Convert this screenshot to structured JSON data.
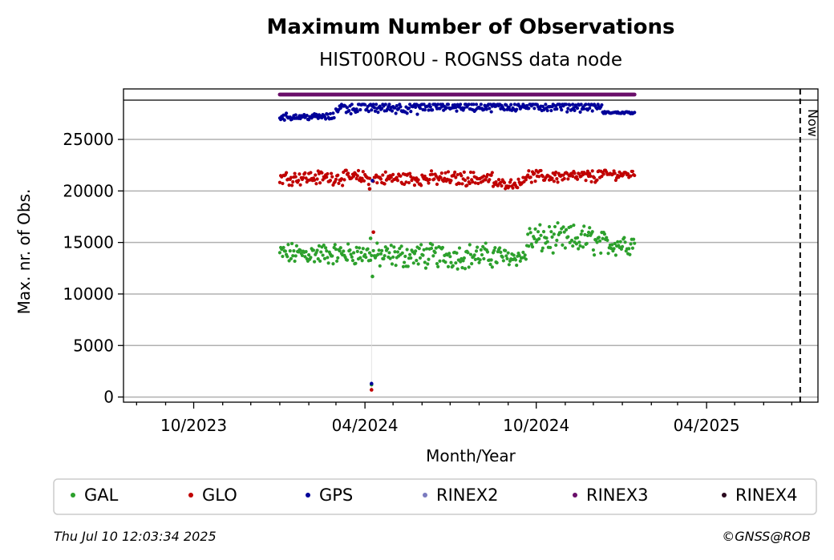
{
  "chart_data": {
    "type": "scatter",
    "title": "Maximum Number of Observations",
    "subtitle": "HIST00ROU - ROGNSS data node",
    "xlabel": "Month/Year",
    "ylabel": "Max. nr. of Obs.",
    "x_range": [
      "2023-07-18",
      "2025-07-29"
    ],
    "ylim": [
      -500,
      29900
    ],
    "x_tick_labels": [
      "10/2023",
      "04/2024",
      "10/2024",
      "04/2025"
    ],
    "x_ticks": [
      "2023-10-01",
      "2024-04-01",
      "2024-10-01",
      "2025-04-01"
    ],
    "y_ticks": [
      0,
      5000,
      10000,
      15000,
      20000,
      25000
    ],
    "y_tick_labels": [
      "0",
      "5000",
      "10000",
      "15000",
      "20000",
      "25000"
    ],
    "grid": "horizontal",
    "now_marker": {
      "date": "2025-07-10",
      "label": "Now"
    },
    "rinex_strip": {
      "series": "RINEX3",
      "start": "2024-01-01",
      "end": "2025-01-14"
    },
    "data_start": "2024-01-01",
    "data_end": "2025-01-14",
    "series": [
      {
        "name": "GAL",
        "color": "#2ca02c",
        "segments": [
          {
            "start": "2024-01-01",
            "end": "2024-04-08",
            "min": 12800,
            "max": 15400,
            "center": 13900
          },
          {
            "start": "2024-04-10",
            "end": "2024-08-24",
            "min": 12300,
            "max": 15300,
            "center": 13700
          },
          {
            "start": "2024-08-25",
            "end": "2024-09-20",
            "min": 12500,
            "max": 14600,
            "center": 13600
          },
          {
            "start": "2024-09-21",
            "end": "2024-12-01",
            "min": 13800,
            "max": 17300,
            "center": 15300
          },
          {
            "start": "2024-12-02",
            "end": "2025-01-14",
            "min": 13600,
            "max": 16500,
            "center": 14900
          }
        ],
        "outliers": [
          {
            "x": "2024-04-07",
            "y": 15400
          },
          {
            "x": "2024-04-09",
            "y": 11700
          },
          {
            "x": "2024-04-08",
            "y": 1200
          }
        ]
      },
      {
        "name": "GLO",
        "color": "#c00000",
        "segments": [
          {
            "start": "2024-01-01",
            "end": "2024-04-06",
            "min": 20300,
            "max": 22000,
            "center": 21300
          },
          {
            "start": "2024-04-10",
            "end": "2024-08-15",
            "min": 20300,
            "max": 22000,
            "center": 21200
          },
          {
            "start": "2024-08-16",
            "end": "2024-09-15",
            "min": 20200,
            "max": 21300,
            "center": 20700
          },
          {
            "start": "2024-09-16",
            "end": "2024-12-05",
            "min": 20500,
            "max": 22000,
            "center": 21400
          },
          {
            "start": "2024-12-06",
            "end": "2025-01-14",
            "min": 20800,
            "max": 22000,
            "center": 21600
          }
        ],
        "outliers": [
          {
            "x": "2024-04-10",
            "y": 16000
          },
          {
            "x": "2024-04-08",
            "y": 700
          },
          {
            "x": "2024-04-06",
            "y": 20200
          }
        ]
      },
      {
        "name": "GPS",
        "color": "#000099",
        "segments": [
          {
            "start": "2024-01-01",
            "end": "2024-02-28",
            "min": 26800,
            "max": 27600,
            "center": 27200
          },
          {
            "start": "2024-03-01",
            "end": "2024-06-10",
            "min": 26900,
            "max": 28400,
            "center": 28100
          },
          {
            "start": "2024-06-11",
            "end": "2024-12-10",
            "min": 27200,
            "max": 28400,
            "center": 28200
          },
          {
            "start": "2024-12-11",
            "end": "2025-01-14",
            "min": 27500,
            "max": 27800,
            "center": 27600
          }
        ],
        "outliers": [
          {
            "x": "2024-04-09",
            "y": 21000
          },
          {
            "x": "2024-04-08",
            "y": 1300
          }
        ]
      },
      {
        "name": "RINEX2",
        "color": "#7b7bbf",
        "segments": [],
        "outliers": []
      },
      {
        "name": "RINEX3",
        "color": "#6a0f6a",
        "segments": [],
        "outliers": []
      },
      {
        "name": "RINEX4",
        "color": "#2a0a1e",
        "segments": [],
        "outliers": []
      }
    ],
    "legend": {
      "position": "bottom",
      "entries": [
        "GAL",
        "GLO",
        "GPS",
        "RINEX2",
        "RINEX3",
        "RINEX4"
      ]
    }
  },
  "footer": {
    "timestamp": "Thu Jul 10 12:03:34 2025",
    "copyright": "©GNSS@ROB"
  }
}
